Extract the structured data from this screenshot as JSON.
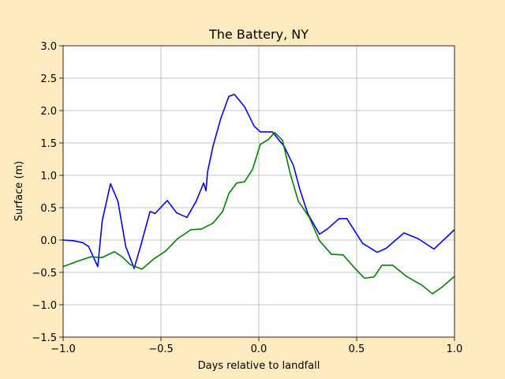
{
  "chart_data": {
    "type": "line",
    "title": "The Battery, NY",
    "x_label": "Days relative to landfall",
    "y_label": "Surface (m)",
    "xlim": [
      -1,
      1
    ],
    "ylim": [
      -1.5,
      3
    ],
    "xticks": [
      {
        "value": -1,
        "label": "−1.0"
      },
      {
        "value": -0.5,
        "label": "−0.5"
      },
      {
        "value": 0,
        "label": "0.0"
      },
      0.5,
      {
        "value": 1,
        "label": "1.0"
      }
    ],
    "yticks": [
      {
        "value": -1.5,
        "label": "−1.5"
      },
      {
        "value": -1,
        "label": "−1.0"
      },
      {
        "value": -0.5,
        "label": "−0.5"
      },
      {
        "value": 0,
        "label": "0.0"
      },
      0.5,
      {
        "value": 1,
        "label": "1.0"
      },
      1.5,
      {
        "value": 2,
        "label": "2.0"
      },
      2.5,
      {
        "value": 3,
        "label": "3.0"
      }
    ],
    "grid": true,
    "series": [
      {
        "color": "#0000ff",
        "x": [
          -1.0,
          -0.95,
          -0.9,
          -0.87,
          -0.823,
          -0.8,
          -0.758,
          -0.72,
          -0.68,
          -0.637,
          -0.6,
          -0.556,
          -0.53,
          -0.468,
          -0.42,
          -0.367,
          -0.32,
          -0.282,
          -0.27,
          -0.262,
          -0.234,
          -0.194,
          -0.153,
          -0.125,
          -0.073,
          -0.024,
          0.008,
          0.069,
          0.129,
          0.177,
          0.21,
          0.25,
          0.31,
          0.35,
          0.41,
          0.45,
          0.53,
          0.605,
          0.65,
          0.742,
          0.815,
          0.895,
          1.0
        ],
        "values": [
          0.0,
          -0.01,
          -0.04,
          -0.1,
          -0.41,
          0.3,
          0.87,
          0.6,
          -0.1,
          -0.44,
          -0.05,
          0.44,
          0.41,
          0.61,
          0.42,
          0.35,
          0.6,
          0.88,
          0.76,
          1.05,
          1.45,
          1.88,
          2.22,
          2.25,
          2.06,
          1.76,
          1.67,
          1.67,
          1.45,
          1.15,
          0.78,
          0.41,
          0.09,
          0.17,
          0.33,
          0.33,
          -0.05,
          -0.19,
          -0.13,
          0.11,
          0.02,
          -0.14,
          0.16
        ]
      },
      {
        "color": "#008000",
        "x": [
          -1.0,
          -0.919,
          -0.859,
          -0.8,
          -0.738,
          -0.698,
          -0.657,
          -0.597,
          -0.536,
          -0.476,
          -0.415,
          -0.347,
          -0.294,
          -0.234,
          -0.185,
          -0.153,
          -0.113,
          -0.073,
          -0.032,
          0.008,
          0.048,
          0.081,
          0.121,
          0.161,
          0.202,
          0.258,
          0.31,
          0.371,
          0.431,
          0.492,
          0.54,
          0.589,
          0.629,
          0.685,
          0.754,
          0.835,
          0.887,
          0.935,
          1.0
        ],
        "values": [
          -0.41,
          -0.32,
          -0.26,
          -0.27,
          -0.18,
          -0.26,
          -0.38,
          -0.45,
          -0.29,
          -0.17,
          0.02,
          0.16,
          0.17,
          0.26,
          0.44,
          0.72,
          0.88,
          0.9,
          1.09,
          1.48,
          1.55,
          1.66,
          1.54,
          1.02,
          0.6,
          0.35,
          -0.01,
          -0.22,
          -0.23,
          -0.44,
          -0.59,
          -0.57,
          -0.39,
          -0.39,
          -0.56,
          -0.7,
          -0.83,
          -0.73,
          -0.56
        ]
      }
    ]
  }
}
